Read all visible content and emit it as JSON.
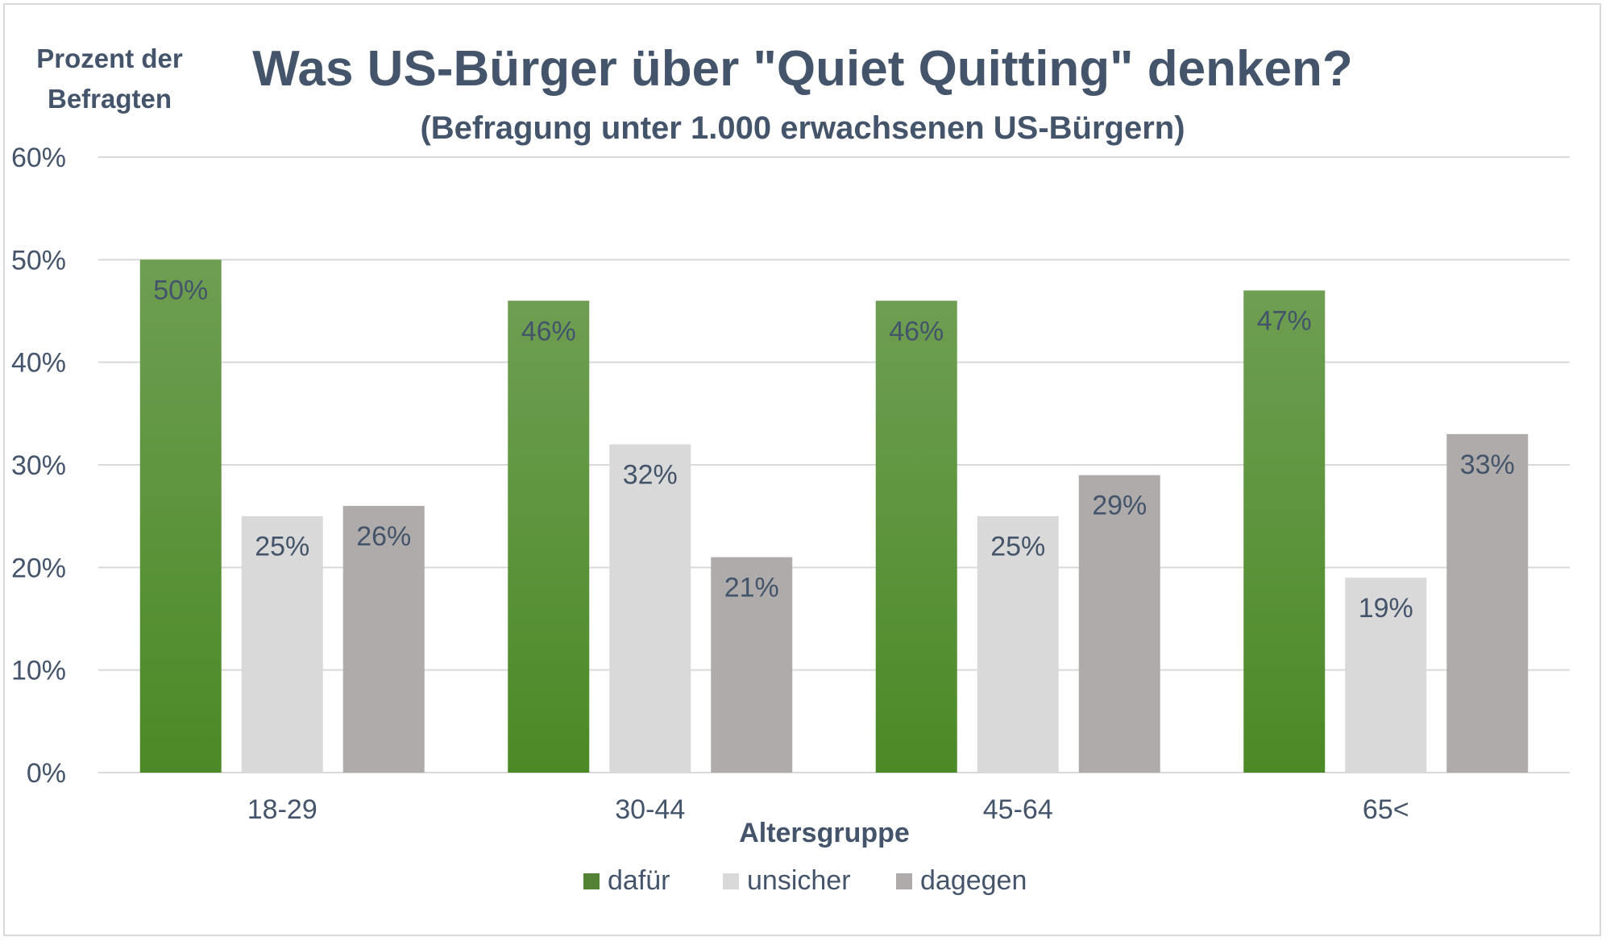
{
  "chart_data": {
    "type": "bar",
    "title": "Was US-Bürger über \"Quiet Quitting\" denken?",
    "subtitle": "(Befragung unter 1.000 erwachsenen US-Bürgern)",
    "ylabel_line1": "Prozent der",
    "ylabel_line2": "Befragten",
    "xlabel": "Altersgruppe",
    "categories": [
      "18-29",
      "30-44",
      "45-64",
      "65<"
    ],
    "ylim": [
      0,
      60
    ],
    "yticks": [
      0,
      10,
      20,
      30,
      40,
      50,
      60
    ],
    "ytick_labels": [
      "0%",
      "10%",
      "20%",
      "30%",
      "40%",
      "50%",
      "60%"
    ],
    "grid": true,
    "legend_position": "bottom",
    "series": [
      {
        "name": "dafür",
        "values": [
          50,
          46,
          46,
          47
        ],
        "labels": [
          "50%",
          "46%",
          "46%",
          "47%"
        ],
        "color": "#548235",
        "color_light": "#70a04f"
      },
      {
        "name": "unsicher",
        "values": [
          25,
          32,
          25,
          19
        ],
        "labels": [
          "25%",
          "32%",
          "25%",
          "19%"
        ],
        "color": "#d9d9d9",
        "color_light": "#d9d9d9"
      },
      {
        "name": "dagegen",
        "values": [
          26,
          21,
          29,
          33
        ],
        "labels": [
          "26%",
          "21%",
          "29%",
          "33%"
        ],
        "color": "#afabab",
        "color_light": "#afabab"
      }
    ]
  }
}
